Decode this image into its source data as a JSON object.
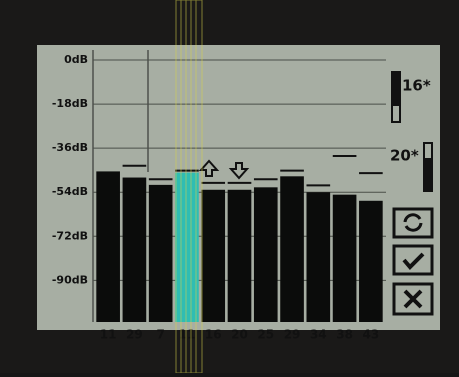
{
  "chart_data": {
    "type": "bar",
    "categories": [
      "11",
      "29",
      "7",
      "11",
      "16",
      "20",
      "25",
      "29",
      "34",
      "38",
      "43"
    ],
    "series": [
      {
        "color": "#0b0c0b",
        "values": [
          -45.5,
          -48,
          -51,
          -46,
          -53,
          -53,
          -52,
          -47.5,
          -54,
          -55,
          -57.5
        ]
      }
    ],
    "peaks": [
      null,
      -44,
      -49.5,
      -46,
      -51,
      -51,
      -49.5,
      -46,
      -52,
      -40,
      -47
    ],
    "highlight": 3,
    "highlight_color": "#2fbdb3",
    "ylim": [
      -107,
      0
    ],
    "yticks": [
      {
        "value": 0,
        "label": "0dB"
      },
      {
        "value": -18,
        "label": "-18dB"
      },
      {
        "value": -36,
        "label": "-36dB"
      },
      {
        "value": -54,
        "label": "-54dB"
      },
      {
        "value": -72,
        "label": "-72dB"
      },
      {
        "value": -90,
        "label": "-90dB"
      }
    ],
    "grid": true,
    "annotations": [
      "16*",
      "20*"
    ]
  }
}
